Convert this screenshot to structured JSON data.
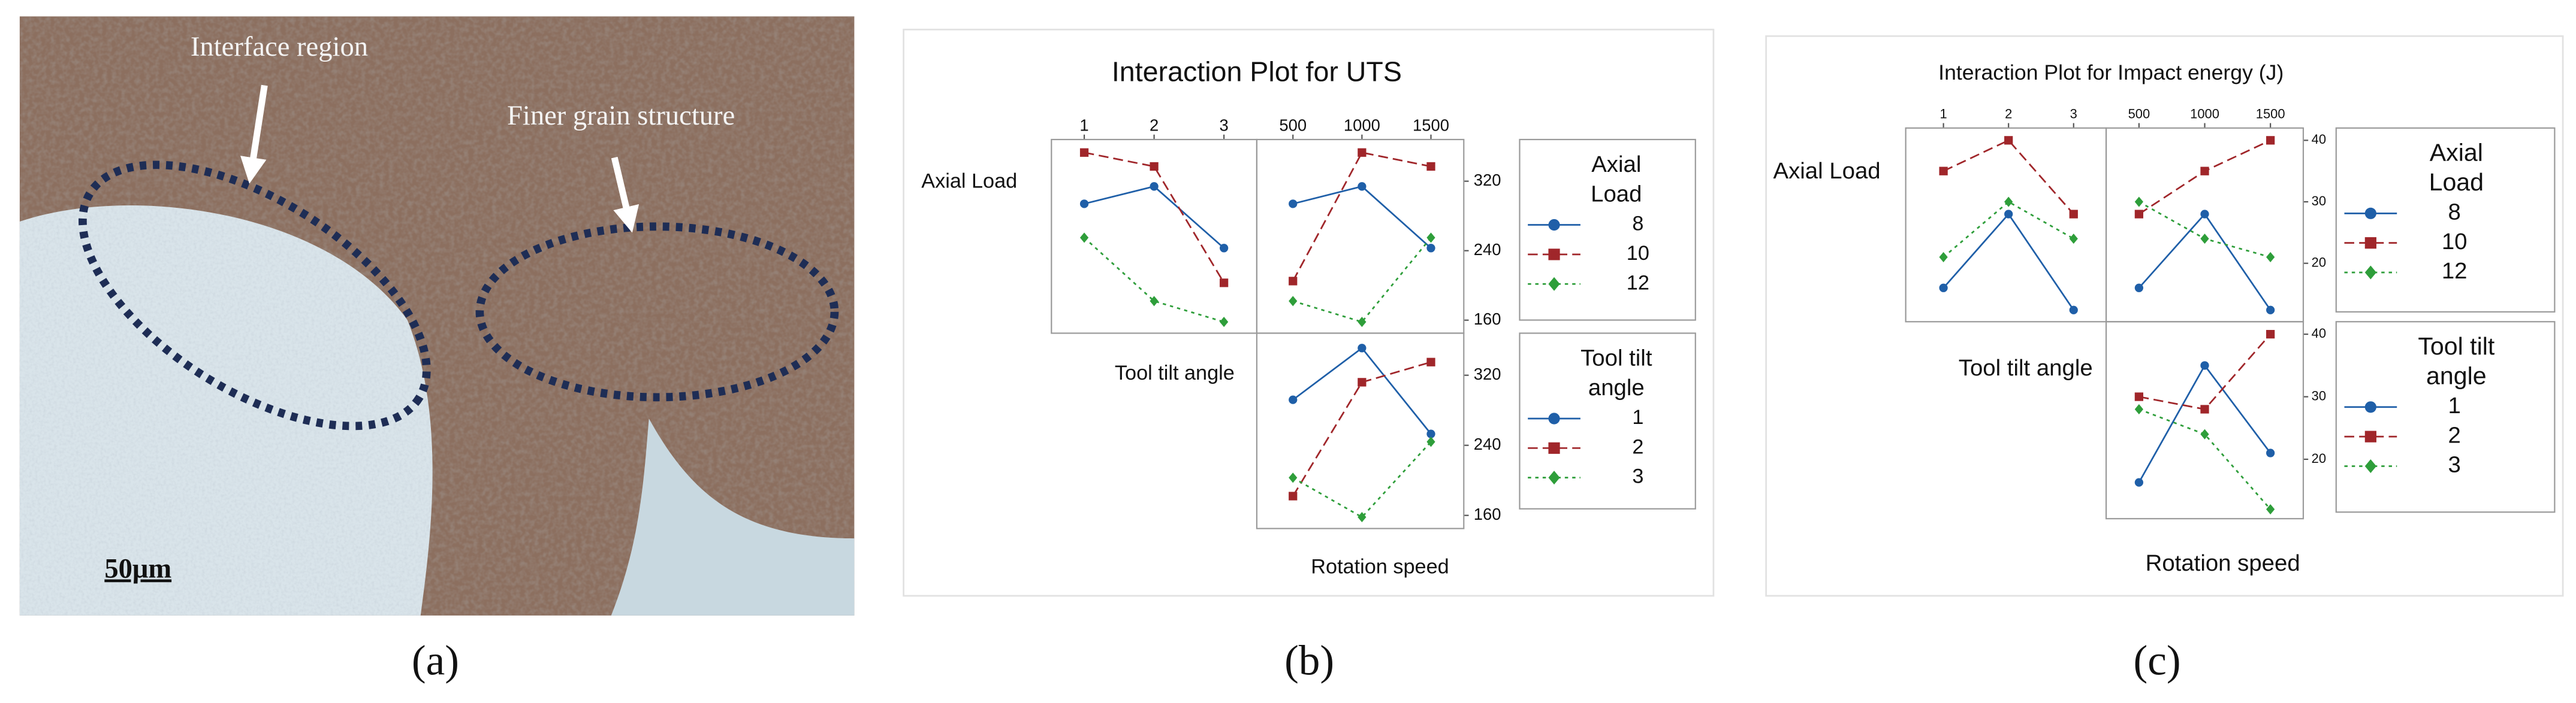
{
  "micrograph": {
    "labels": [
      "Interface region",
      "Finer grain structure"
    ],
    "scale_bar": "50μm"
  },
  "panel_labels": [
    "(a)",
    "(b)",
    "(c)"
  ],
  "chart_data": [
    {
      "type": "interaction",
      "title": "Interaction Plot for UTS",
      "xlabel": "Rotation speed",
      "ylim": [
        145,
        368
      ],
      "yticks": [
        160,
        240,
        320
      ],
      "columns": [
        {
          "xticks": [
            1,
            2,
            3
          ],
          "xlim": [
            0.53,
            3.47
          ]
        },
        {
          "xticks": [
            500,
            1000,
            1500
          ],
          "xlim": [
            238,
            1738
          ]
        }
      ],
      "rows": [
        {
          "label": "Axial Load",
          "legend_title": [
            "Axial",
            "Load"
          ],
          "series": [
            {
              "name": "8",
              "color": "#1f5fa8",
              "dash": "solid",
              "marker": "circle"
            },
            {
              "name": "10",
              "color": "#a0262a",
              "dash": "dashed",
              "marker": "square"
            },
            {
              "name": "12",
              "color": "#2e9e3a",
              "dash": "dotted",
              "marker": "diamond"
            }
          ],
          "panels": [
            {
              "values": [
                [
                  294,
                  314,
                  243
                ],
                [
                  353,
                  337,
                  203
                ],
                [
                  255,
                  182,
                  158
                ]
              ]
            },
            {
              "values": [
                [
                  294,
                  314,
                  243
                ],
                [
                  205,
                  353,
                  337
                ],
                [
                  182,
                  158,
                  255
                ]
              ]
            }
          ]
        },
        {
          "label": "Tool tilt angle",
          "legend_title": [
            "Tool tilt",
            "angle"
          ],
          "series": [
            {
              "name": "1",
              "color": "#1f5fa8",
              "dash": "solid",
              "marker": "circle"
            },
            {
              "name": "2",
              "color": "#a0262a",
              "dash": "dashed",
              "marker": "square"
            },
            {
              "name": "3",
              "color": "#2e9e3a",
              "dash": "dotted",
              "marker": "diamond"
            }
          ],
          "panels": [
            {
              "values": [
                [
                  292,
                  351,
                  253
                ],
                [
                  182,
                  312,
                  335
                ],
                [
                  203,
                  158,
                  244
                ]
              ]
            }
          ]
        }
      ]
    },
    {
      "type": "interaction",
      "title": "Interaction Plot for Impact energy (J)",
      "xlabel": "Rotation speed",
      "ylim": [
        10.5,
        42
      ],
      "yticks": [
        20,
        30,
        40
      ],
      "columns": [
        {
          "xticks": [
            1,
            2,
            3
          ],
          "xlim": [
            0.42,
            3.5
          ]
        },
        {
          "xticks": [
            500,
            1000,
            1500
          ],
          "xlim": [
            250,
            1750
          ]
        }
      ],
      "rows": [
        {
          "label": "Axial Load",
          "legend_title": [
            "Axial",
            "Load"
          ],
          "series": [
            {
              "name": "8",
              "color": "#1f5fa8",
              "dash": "solid",
              "marker": "circle"
            },
            {
              "name": "10",
              "color": "#a0262a",
              "dash": "dashed",
              "marker": "square"
            },
            {
              "name": "12",
              "color": "#2e9e3a",
              "dash": "dotted",
              "marker": "diamond"
            }
          ],
          "panels": [
            {
              "values": [
                [
                  16,
                  28,
                  12.4
                ],
                [
                  35,
                  40,
                  28
                ],
                [
                  21,
                  30,
                  24
                ]
              ]
            },
            {
              "values": [
                [
                  16,
                  28,
                  12.4
                ],
                [
                  28,
                  35,
                  40
                ],
                [
                  30,
                  24,
                  21
                ]
              ]
            }
          ]
        },
        {
          "label": "Tool tilt angle",
          "legend_title": [
            "Tool tilt",
            "angle"
          ],
          "series": [
            {
              "name": "1",
              "color": "#1f5fa8",
              "dash": "solid",
              "marker": "circle"
            },
            {
              "name": "2",
              "color": "#a0262a",
              "dash": "dashed",
              "marker": "square"
            },
            {
              "name": "3",
              "color": "#2e9e3a",
              "dash": "dotted",
              "marker": "diamond"
            }
          ],
          "panels": [
            {
              "values": [
                [
                  16.3,
                  35,
                  21
                ],
                [
                  30,
                  28,
                  40
                ],
                [
                  28,
                  24,
                  12
                ]
              ]
            }
          ]
        }
      ]
    }
  ]
}
